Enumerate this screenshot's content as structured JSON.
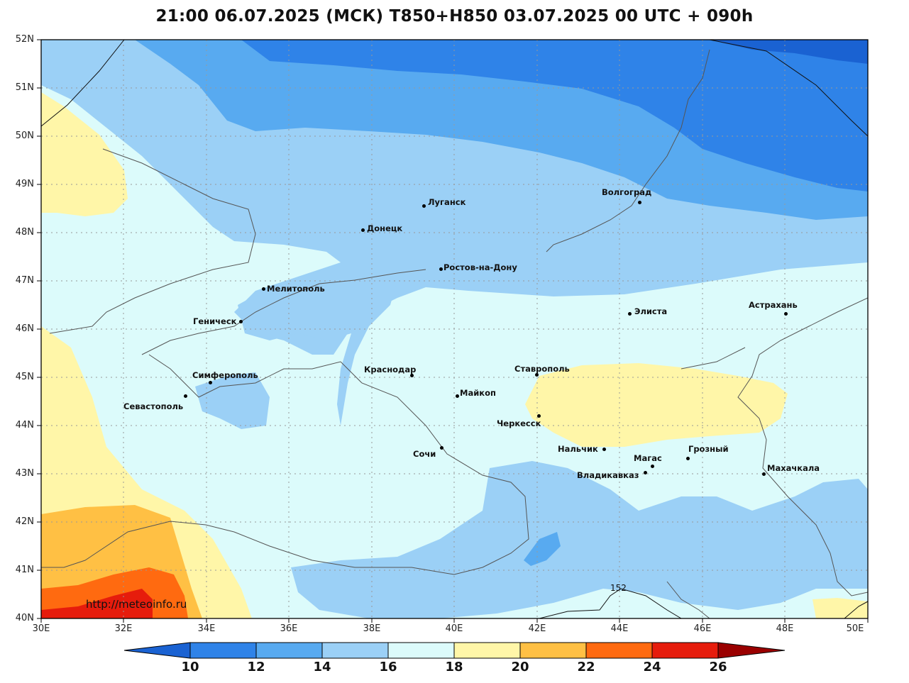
{
  "title": "21:00 06.07.2025 (МСК) T850+H850 03.07.2025 00 UTC + 090h",
  "watermark": "http://meteoinfo.ru",
  "contour_label": "152",
  "lat_labels": [
    "52N",
    "51N",
    "50N",
    "49N",
    "48N",
    "47N",
    "46N",
    "45N",
    "44N",
    "43N",
    "42N",
    "41N",
    "40N"
  ],
  "lon_labels": [
    "30E",
    "32E",
    "34E",
    "36E",
    "38E",
    "40E",
    "42E",
    "44E",
    "46E",
    "48E",
    "50E"
  ],
  "colorbar": {
    "labels": [
      "10",
      "12",
      "14",
      "16",
      "18",
      "20",
      "22",
      "24",
      "26"
    ],
    "colors": [
      "#1a62d2",
      "#2f83e8",
      "#58aaf0",
      "#9bd0f6",
      "#dcfbfb",
      "#fff6a8",
      "#ffc044",
      "#ff6a10",
      "#e61c0c",
      "#9a0000"
    ]
  },
  "cities": [
    {
      "name": "Волгоград"
    },
    {
      "name": "Луганск"
    },
    {
      "name": "Донецк"
    },
    {
      "name": "Ростов-на-Дону"
    },
    {
      "name": "Мелитополь"
    },
    {
      "name": "Геническ"
    },
    {
      "name": "Элиста"
    },
    {
      "name": "Астрахань"
    },
    {
      "name": "Симферополь"
    },
    {
      "name": "Севастополь"
    },
    {
      "name": "Краснодар"
    },
    {
      "name": "Ставрополь"
    },
    {
      "name": "Майкоп"
    },
    {
      "name": "Черкесск"
    },
    {
      "name": "Сочи"
    },
    {
      "name": "Нальчик"
    },
    {
      "name": "Магас"
    },
    {
      "name": "Грозный"
    },
    {
      "name": "Владикавказ"
    },
    {
      "name": "Махачкала"
    }
  ]
}
